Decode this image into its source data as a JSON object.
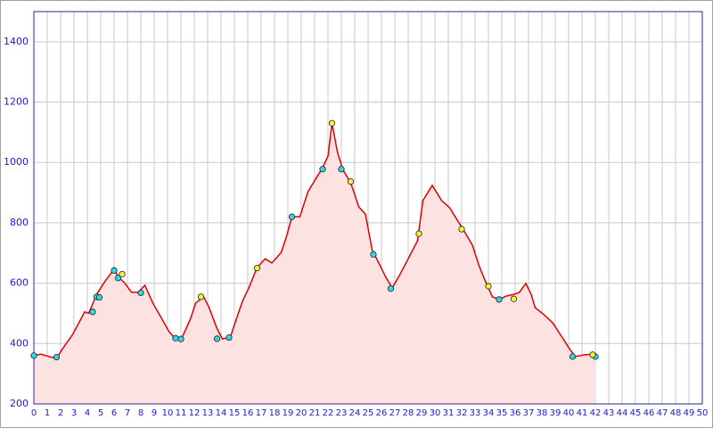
{
  "chart_data": {
    "type": "area",
    "xlim": [
      0,
      50
    ],
    "ylim": [
      200,
      1500
    ],
    "xticks": [
      0,
      1,
      2,
      3,
      4,
      5,
      6,
      7,
      8,
      9,
      10,
      11,
      12,
      13,
      14,
      15,
      16,
      17,
      18,
      19,
      20,
      21,
      22,
      23,
      24,
      25,
      26,
      27,
      28,
      29,
      30,
      31,
      32,
      33,
      34,
      35,
      36,
      37,
      38,
      39,
      40,
      41,
      42,
      43,
      44,
      45,
      46,
      47,
      48,
      49,
      50
    ],
    "yticks": [
      200,
      400,
      600,
      800,
      1000,
      1200,
      1400
    ],
    "grid": true,
    "series": [
      {
        "color": "#e00000",
        "fill": "#fde2e2",
        "x": [
          0,
          0.5,
          1.7,
          2.1,
          2.9,
          3.8,
          4.1,
          4.7,
          5.3,
          6,
          6.3,
          6.8,
          7.3,
          7.8,
          8.3,
          8.9,
          9.6,
          10.1,
          10.6,
          11.1,
          11.7,
          12.1,
          12.7,
          13.1,
          13.7,
          14.1,
          14.7,
          15.1,
          15.6,
          16.1,
          16.7,
          17.3,
          17.8,
          18.5,
          18.9,
          19.3,
          19.9,
          20.5,
          21.1,
          21.6,
          22,
          22.3,
          22.7,
          23.1,
          23.7,
          24.3,
          24.8,
          25.3,
          25.8,
          26.3,
          26.8,
          27.3,
          28,
          28.7,
          29.1,
          29.8,
          30.5,
          31.1,
          31.6,
          32.1,
          32.8,
          33.3,
          33.9,
          34.3,
          34.8,
          35.3,
          35.9,
          36.3,
          36.8,
          37.2,
          37.5,
          38.1,
          38.8,
          39.5,
          40.1,
          40.5,
          41.1,
          41.8,
          42
        ],
        "values": [
          360,
          365,
          350,
          380,
          430,
          505,
          500,
          563,
          605,
          646,
          622,
          600,
          570,
          570,
          593,
          534,
          480,
          440,
          415,
          422,
          480,
          534,
          555,
          520,
          450,
          415,
          422,
          475,
          540,
          587,
          652,
          681,
          667,
          702,
          755,
          820,
          820,
          903,
          947,
          983,
          1021,
          1130,
          1036,
          977,
          933,
          853,
          829,
          711,
          667,
          622,
          584,
          622,
          681,
          741,
          874,
          924,
          874,
          850,
          814,
          779,
          726,
          658,
          593,
          555,
          546,
          557,
          563,
          569,
          599,
          563,
          519,
          498,
          469,
          422,
          380,
          357,
          362,
          365,
          360
        ]
      }
    ],
    "markers": [
      {
        "color": "#33d6e8",
        "x": [
          0,
          1.7,
          4.4,
          4.7,
          4.9,
          6,
          6.3,
          8,
          10.6,
          11,
          13.7,
          14.6,
          19.3,
          21.6,
          23,
          25.4,
          26.7,
          34.8,
          40.3,
          42
        ],
        "values": [
          360,
          355,
          505,
          555,
          553,
          642,
          617,
          568,
          418,
          415,
          416,
          420,
          820,
          978,
          978,
          695,
          582,
          546,
          357,
          357
        ]
      },
      {
        "color": "#f5f536",
        "x": [
          6.6,
          12.5,
          16.7,
          22.3,
          23.7,
          28.8,
          32,
          34,
          35.9,
          41.8
        ],
        "values": [
          630,
          555,
          650,
          1130,
          937,
          764,
          779,
          590,
          548,
          363
        ]
      }
    ]
  }
}
